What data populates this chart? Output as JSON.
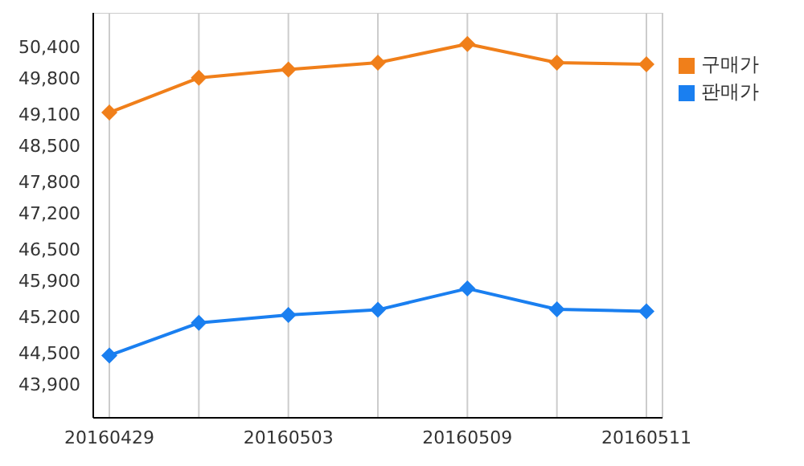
{
  "chart_data": {
    "type": "line",
    "categories": [
      "20160429",
      null,
      "20160503",
      null,
      "20160509",
      null,
      "20160511"
    ],
    "series": [
      {
        "name": "구매가",
        "color": "#f07f1a",
        "values": [
          49130,
          49800,
          49960,
          50090,
          50450,
          50090,
          50060
        ]
      },
      {
        "name": "판매가",
        "color": "#1a7ff0",
        "values": [
          44450,
          45080,
          45230,
          45330,
          45740,
          45340,
          45300
        ]
      }
    ],
    "ylim": [
      43250,
      51050
    ],
    "yticks": [
      {
        "value": 43900,
        "label": "43,900"
      },
      {
        "value": 44500,
        "label": "44,500"
      },
      {
        "value": 45200,
        "label": "45,200"
      },
      {
        "value": 45900,
        "label": "45,900"
      },
      {
        "value": 46500,
        "label": "46,500"
      },
      {
        "value": 47200,
        "label": "47,200"
      },
      {
        "value": 47800,
        "label": "47,800"
      },
      {
        "value": 48500,
        "label": "48,500"
      },
      {
        "value": 49100,
        "label": "49,100"
      },
      {
        "value": 49800,
        "label": "49,800"
      },
      {
        "value": 50400,
        "label": "50,400"
      }
    ],
    "grid": true,
    "legend": "top right",
    "marker": "diamond",
    "line_style": "solid"
  }
}
